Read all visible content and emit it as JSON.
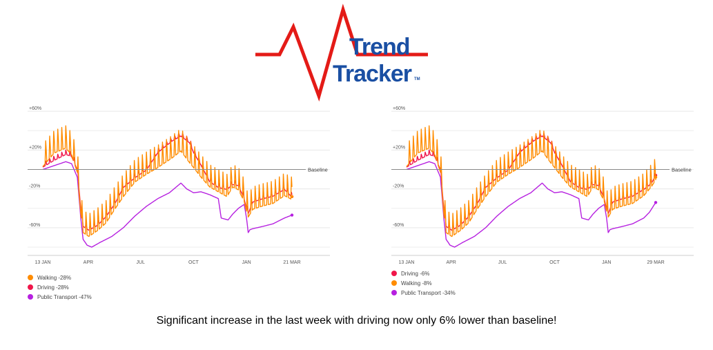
{
  "logo": {
    "line1": "Trend",
    "line2": "Tracker",
    "tm": "TM",
    "colors": {
      "pulse": "#e41b17",
      "text": "#1a4fa3"
    }
  },
  "caption": "Significant increase in the last week with driving now only 6% lower than baseline!",
  "chart_data": [
    {
      "type": "line",
      "y_ticks": [
        "+60%",
        "+20%",
        "-20%",
        "-60%"
      ],
      "y_tick_values": [
        60,
        20,
        -20,
        -60
      ],
      "ylim": [
        -85,
        75
      ],
      "baseline_label": "Baseline",
      "x_ticks": [
        "13 JAN",
        "APR",
        "JUL",
        "OCT",
        "JAN",
        "21 MAR"
      ],
      "x_tick_days": [
        0,
        79,
        170,
        262,
        354,
        433
      ],
      "x_range_days": [
        0,
        433
      ],
      "legend_placement": "bottom-left",
      "legend": [
        {
          "label": "Walking -28%",
          "color": "#ff8c00"
        },
        {
          "label": "Driving -28%",
          "color": "#f0164a"
        },
        {
          "label": "Public Transport -47%",
          "color": "#b620e0"
        }
      ],
      "series": [
        {
          "name": "Public Transport",
          "color": "#b620e0",
          "days": [
            0,
            20,
            40,
            50,
            60,
            66,
            70,
            77,
            85,
            100,
            120,
            140,
            160,
            180,
            200,
            220,
            240,
            250,
            262,
            275,
            290,
            305,
            310,
            322,
            330,
            340,
            350,
            354,
            357,
            360,
            365,
            380,
            400,
            420,
            433
          ],
          "values": [
            0,
            4,
            8,
            6,
            -8,
            -50,
            -72,
            -78,
            -80,
            -75,
            -69,
            -60,
            -48,
            -38,
            -30,
            -24,
            -14,
            -20,
            -24,
            -23,
            -26,
            -30,
            -50,
            -52,
            -46,
            -40,
            -36,
            -50,
            -65,
            -62,
            -61,
            -59,
            -56,
            -50,
            -47
          ]
        },
        {
          "name": "Driving",
          "color": "#f0164a",
          "amplitude": 4,
          "days": [
            0,
            20,
            40,
            50,
            60,
            66,
            70,
            80,
            95,
            110,
            125,
            140,
            160,
            180,
            200,
            225,
            240,
            255,
            262,
            275,
            290,
            305,
            320,
            330,
            340,
            350,
            354,
            357,
            365,
            380,
            400,
            420,
            433
          ],
          "values": [
            3,
            10,
            16,
            14,
            0,
            -40,
            -58,
            -62,
            -57,
            -48,
            -35,
            -18,
            -8,
            0,
            18,
            30,
            35,
            28,
            18,
            5,
            -12,
            -18,
            -20,
            -15,
            -16,
            -30,
            -40,
            -45,
            -33,
            -30,
            -27,
            -20,
            -28
          ]
        },
        {
          "name": "Walking",
          "color": "#ff8c00",
          "amplitude": 20,
          "days": [
            0,
            20,
            40,
            50,
            60,
            66,
            70,
            80,
            95,
            110,
            125,
            140,
            160,
            180,
            200,
            225,
            240,
            255,
            262,
            275,
            290,
            305,
            320,
            330,
            340,
            350,
            354,
            357,
            365,
            380,
            400,
            420,
            433
          ],
          "values": [
            6,
            20,
            25,
            18,
            0,
            -42,
            -62,
            -66,
            -60,
            -52,
            -38,
            -25,
            -10,
            -2,
            5,
            15,
            22,
            10,
            5,
            -5,
            -15,
            -20,
            -25,
            -15,
            -18,
            -30,
            -40,
            -46,
            -38,
            -35,
            -32,
            -24,
            -28
          ]
        }
      ]
    },
    {
      "type": "line",
      "y_ticks": [
        "+60%",
        "+20%",
        "-20%",
        "-60%"
      ],
      "y_tick_values": [
        60,
        20,
        -20,
        -60
      ],
      "ylim": [
        -85,
        75
      ],
      "baseline_label": "Baseline",
      "x_ticks": [
        "13 JAN",
        "APR",
        "JUL",
        "OCT",
        "JAN",
        "29 MAR"
      ],
      "x_tick_days": [
        0,
        79,
        170,
        262,
        354,
        441
      ],
      "x_range_days": [
        0,
        441
      ],
      "legend_placement": "bottom-left",
      "legend": [
        {
          "label": "Driving -6%",
          "color": "#f0164a"
        },
        {
          "label": "Walking -8%",
          "color": "#ff8c00"
        },
        {
          "label": "Public Transport -34%",
          "color": "#b620e0"
        }
      ],
      "series": [
        {
          "name": "Public Transport",
          "color": "#b620e0",
          "days": [
            0,
            20,
            40,
            50,
            60,
            66,
            70,
            77,
            85,
            100,
            120,
            140,
            160,
            180,
            200,
            220,
            240,
            250,
            262,
            275,
            290,
            305,
            310,
            322,
            330,
            340,
            350,
            354,
            357,
            360,
            365,
            380,
            400,
            420,
            430,
            441
          ],
          "values": [
            0,
            4,
            8,
            6,
            -8,
            -50,
            -72,
            -78,
            -80,
            -75,
            -69,
            -60,
            -48,
            -38,
            -30,
            -24,
            -14,
            -20,
            -24,
            -23,
            -26,
            -30,
            -50,
            -52,
            -46,
            -40,
            -36,
            -50,
            -65,
            -62,
            -61,
            -59,
            -56,
            -50,
            -44,
            -34
          ]
        },
        {
          "name": "Driving",
          "color": "#f0164a",
          "amplitude": 4,
          "days": [
            0,
            20,
            40,
            50,
            60,
            66,
            70,
            80,
            95,
            110,
            125,
            140,
            160,
            180,
            200,
            225,
            240,
            255,
            262,
            275,
            290,
            305,
            320,
            330,
            340,
            350,
            354,
            357,
            365,
            380,
            400,
            420,
            433,
            441
          ],
          "values": [
            3,
            10,
            16,
            14,
            0,
            -40,
            -58,
            -62,
            -57,
            -48,
            -35,
            -18,
            -8,
            0,
            18,
            30,
            35,
            28,
            18,
            5,
            -12,
            -18,
            -20,
            -15,
            -16,
            -30,
            -40,
            -45,
            -33,
            -30,
            -27,
            -20,
            -14,
            -6
          ]
        },
        {
          "name": "Walking",
          "color": "#ff8c00",
          "amplitude": 20,
          "days": [
            0,
            20,
            40,
            50,
            60,
            66,
            70,
            80,
            95,
            110,
            125,
            140,
            160,
            180,
            200,
            225,
            240,
            255,
            262,
            275,
            290,
            305,
            320,
            330,
            340,
            350,
            354,
            357,
            365,
            380,
            400,
            420,
            433,
            441
          ],
          "values": [
            6,
            20,
            25,
            18,
            0,
            -42,
            -62,
            -66,
            -60,
            -52,
            -38,
            -25,
            -10,
            -2,
            5,
            15,
            22,
            10,
            5,
            -5,
            -15,
            -20,
            -25,
            -15,
            -18,
            -30,
            -40,
            -46,
            -38,
            -35,
            -32,
            -24,
            -15,
            -8
          ]
        }
      ]
    }
  ]
}
